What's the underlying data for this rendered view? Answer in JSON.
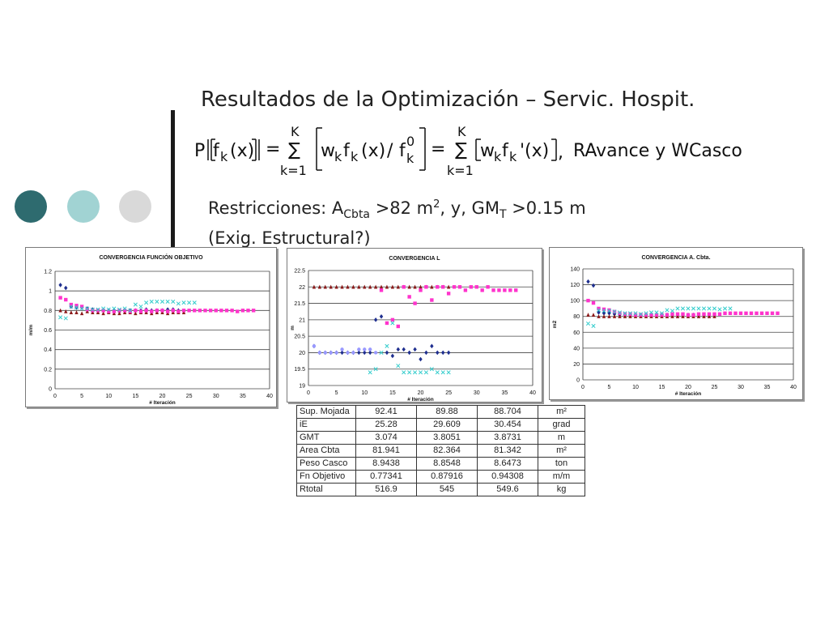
{
  "slide": {
    "title": "Resultados de la Optimización – Servic. Hospit.",
    "dot_colors": [
      "#2e6b6f",
      "#a1d3d3",
      "#d9d9d9"
    ],
    "formula": {
      "lhs_p": "P",
      "fk": "f",
      "k": "k",
      "x": "(x)",
      "eq": "=",
      "sum": "∑",
      "upper": "K",
      "lower": "k=1",
      "w": "w",
      "slash": "/",
      "zero": "0",
      "xprime": "'(x)",
      "comma": ",",
      "tail": "RAvance y WCasco"
    },
    "restricciones": {
      "line1_a": "Restricciones: A",
      "sub_cbta": "Cbta",
      "line1_b": " >82 m",
      "sup2": "2",
      "line1_c": ", y, GM",
      "sub_t": "T",
      "line1_d": " >0.15 m",
      "line2": "(Exig. Estructural?)"
    }
  },
  "colors": {
    "navy": "#1f2f8f",
    "maroon": "#8b1a1a",
    "magenta": "#ff33cc",
    "cyan": "#33cccc",
    "lavender": "#9999ff",
    "grid": "#444444"
  },
  "table": {
    "rows": [
      {
        "label": "Sup. Mojada",
        "v1": "92.41",
        "v2": "89.88",
        "v3": "88.704",
        "unit": "m²"
      },
      {
        "label": "iE",
        "v1": "25.28",
        "v2": "29.609",
        "v3": "30.454",
        "unit": "grad"
      },
      {
        "label": "GMT",
        "v1": "3.074",
        "v2": "3.8051",
        "v3": "3.8731",
        "unit": "m"
      },
      {
        "label": "Area Cbta",
        "v1": "81.941",
        "v2": "82.364",
        "v3": "81.342",
        "unit": "m²"
      },
      {
        "label": "Peso Casco",
        "v1": "8.9438",
        "v2": "8.8548",
        "v3": "8.6473",
        "unit": "ton"
      },
      {
        "label": "Fn Objetivo",
        "v1": "0.77341",
        "v2": "0.87916",
        "v3": "0.94308",
        "unit": "m/m"
      },
      {
        "label": "Rtotal",
        "v1": "516.9",
        "v2": "545",
        "v3": "549.6",
        "unit": "kg"
      }
    ]
  },
  "chart_data": [
    {
      "type": "scatter",
      "title": "CONVERGENCIA FUNCIÓN OBJETIVO",
      "xlabel": "# Iteración",
      "ylabel": "m/m",
      "xlim": [
        0,
        40
      ],
      "ylim": [
        0,
        1.2
      ],
      "xticks": [
        0,
        5,
        10,
        15,
        20,
        25,
        30,
        35,
        40
      ],
      "yticks": [
        0,
        0.2,
        0.4,
        0.6,
        0.8,
        1,
        1.2
      ],
      "ytick_labels": [
        "0",
        "0.2",
        "0.4",
        "0.6",
        "0.8",
        "1",
        "1.2"
      ],
      "grid": "horizontal",
      "series": [
        {
          "marker": "diamond",
          "color": "#1f2f8f",
          "x": [
            1,
            2,
            3,
            4,
            5,
            6,
            7,
            8,
            9,
            10,
            11,
            12,
            13,
            14,
            15,
            16,
            17,
            18,
            19,
            20,
            21,
            22,
            23
          ],
          "y": [
            1.06,
            1.03,
            0.84,
            0.83,
            0.83,
            0.82,
            0.81,
            0.8,
            0.8,
            0.8,
            0.8,
            0.79,
            0.8,
            0.8,
            0.8,
            0.8,
            0.81,
            0.8,
            0.8,
            0.8,
            0.81,
            0.81,
            0.8
          ]
        },
        {
          "marker": "triangle",
          "color": "#8b1a1a",
          "x": [
            1,
            2,
            3,
            4,
            5,
            6,
            7,
            8,
            9,
            10,
            11,
            12,
            13,
            14,
            15,
            16,
            17,
            18,
            19,
            20,
            21,
            22,
            23,
            24
          ],
          "y": [
            0.8,
            0.79,
            0.78,
            0.78,
            0.77,
            0.79,
            0.78,
            0.78,
            0.77,
            0.78,
            0.77,
            0.77,
            0.78,
            0.78,
            0.77,
            0.78,
            0.78,
            0.77,
            0.78,
            0.78,
            0.77,
            0.78,
            0.78,
            0.78
          ]
        },
        {
          "marker": "square",
          "color": "#ff33cc",
          "x": [
            1,
            2,
            3,
            4,
            5,
            6,
            7,
            8,
            9,
            10,
            11,
            12,
            13,
            14,
            15,
            16,
            17,
            18,
            19,
            20,
            21,
            22,
            23,
            24,
            25,
            26,
            27,
            28,
            29,
            30,
            31,
            32,
            33,
            34,
            35,
            36,
            37
          ],
          "y": [
            0.93,
            0.91,
            0.86,
            0.85,
            0.84,
            0.81,
            0.8,
            0.8,
            0.8,
            0.79,
            0.79,
            0.8,
            0.8,
            0.79,
            0.8,
            0.79,
            0.8,
            0.79,
            0.8,
            0.8,
            0.79,
            0.8,
            0.79,
            0.8,
            0.8,
            0.8,
            0.8,
            0.8,
            0.8,
            0.8,
            0.8,
            0.8,
            0.8,
            0.79,
            0.8,
            0.8,
            0.8
          ]
        },
        {
          "marker": "x",
          "color": "#33cccc",
          "x": [
            1,
            2,
            3,
            4,
            5,
            6,
            7,
            8,
            9,
            10,
            11,
            12,
            13,
            14,
            15,
            16,
            17,
            18,
            19,
            20,
            21,
            22,
            23,
            24,
            25,
            26
          ],
          "y": [
            0.73,
            0.72,
            0.84,
            0.83,
            0.82,
            0.82,
            0.81,
            0.81,
            0.82,
            0.81,
            0.82,
            0.81,
            0.82,
            0.8,
            0.86,
            0.84,
            0.88,
            0.89,
            0.89,
            0.89,
            0.89,
            0.89,
            0.87,
            0.88,
            0.88,
            0.88
          ]
        }
      ]
    },
    {
      "type": "scatter",
      "title": "CONVERGENCIA  L",
      "xlabel": "# Iteración",
      "ylabel": "m",
      "xlim": [
        0,
        40
      ],
      "ylim": [
        19,
        22.5
      ],
      "xticks": [
        0,
        5,
        10,
        15,
        20,
        25,
        30,
        35,
        40
      ],
      "yticks": [
        19,
        19.5,
        20,
        20.5,
        21,
        21.5,
        22,
        22.5
      ],
      "ytick_labels": [
        "19",
        "19.5",
        "20",
        "20.5",
        "21",
        "21.5",
        "22",
        "22.5"
      ],
      "grid": "horizontal",
      "series": [
        {
          "marker": "diamond",
          "color": "#1f2f8f",
          "x": [
            1,
            2,
            3,
            4,
            5,
            6,
            7,
            8,
            9,
            10,
            11,
            12,
            13,
            14,
            15,
            16,
            17,
            18,
            19,
            20,
            21,
            22,
            23,
            24,
            25
          ],
          "y": [
            20.2,
            20.0,
            20.0,
            20.0,
            20.0,
            20.0,
            20.0,
            20.0,
            20.0,
            20.0,
            20.0,
            21.0,
            21.1,
            20.0,
            19.9,
            20.1,
            20.1,
            20.0,
            20.1,
            19.8,
            20.0,
            20.2,
            20.0,
            20.0,
            20.0
          ]
        },
        {
          "marker": "triangle",
          "color": "#8b1a1a",
          "x": [
            1,
            2,
            3,
            4,
            5,
            6,
            7,
            8,
            9,
            10,
            11,
            12,
            13,
            14,
            15,
            16,
            17,
            18,
            19,
            20,
            21,
            22,
            23,
            24,
            25
          ],
          "y": [
            22.0,
            22.0,
            22.0,
            22.0,
            22.0,
            22.0,
            22.0,
            22.0,
            22.0,
            22.0,
            22.0,
            22.0,
            22.0,
            22.0,
            22.0,
            22.0,
            22.0,
            22.0,
            22.0,
            22.0,
            22.0,
            22.0,
            22.0,
            22.0,
            22.0
          ]
        },
        {
          "marker": "square",
          "color": "#ff33cc",
          "x": [
            17,
            18,
            19,
            20,
            21,
            22,
            23,
            24,
            25,
            26,
            27,
            28,
            29,
            30,
            31,
            32,
            33,
            34,
            35,
            36,
            37,
            13,
            14,
            15,
            16
          ],
          "y": [
            22.0,
            21.7,
            21.5,
            21.9,
            22.0,
            21.6,
            22.0,
            22.0,
            21.8,
            22.0,
            22.0,
            21.9,
            22.0,
            22.0,
            21.9,
            22.0,
            21.9,
            21.9,
            21.9,
            21.9,
            21.9,
            21.9,
            20.9,
            21.0,
            20.8
          ]
        },
        {
          "marker": "x",
          "color": "#33cccc",
          "x": [
            11,
            12,
            13,
            14,
            15,
            16,
            17,
            18,
            19,
            20,
            21,
            22,
            23,
            24,
            25
          ],
          "y": [
            19.4,
            19.5,
            20.0,
            20.2,
            20.9,
            19.6,
            19.4,
            19.4,
            19.4,
            19.4,
            19.4,
            19.5,
            19.4,
            19.4,
            19.4
          ]
        },
        {
          "marker": "circle",
          "color": "#9999ff",
          "x": [
            1,
            2,
            3,
            4,
            5,
            6,
            7,
            8,
            9,
            10,
            11,
            12
          ],
          "y": [
            20.2,
            20.0,
            20.0,
            20.0,
            20.0,
            20.1,
            20.0,
            20.0,
            20.1,
            20.1,
            20.1,
            20.0
          ]
        }
      ]
    },
    {
      "type": "scatter",
      "title": "CONVERGENCIA  A. Cbta.",
      "xlabel": "# Iteración",
      "ylabel": "m2",
      "xlim": [
        0,
        40
      ],
      "ylim": [
        0,
        140
      ],
      "xticks": [
        0,
        5,
        10,
        15,
        20,
        25,
        30,
        35,
        40
      ],
      "yticks": [
        0,
        20,
        40,
        60,
        80,
        100,
        120,
        140
      ],
      "ytick_labels": [
        "0",
        "20",
        "40",
        "60",
        "80",
        "100",
        "120",
        "140"
      ],
      "grid": "horizontal",
      "series": [
        {
          "marker": "diamond",
          "color": "#1f2f8f",
          "x": [
            1,
            2,
            3,
            4,
            5,
            6,
            7,
            8,
            9,
            10,
            11,
            12,
            13,
            14,
            15,
            16,
            17,
            18,
            19,
            20,
            21,
            22,
            23,
            24,
            25
          ],
          "y": [
            124,
            119,
            85,
            84,
            84,
            83,
            82,
            82,
            82,
            82,
            82,
            82,
            82,
            82,
            82,
            82,
            82,
            82,
            82,
            82,
            82,
            82,
            82,
            82,
            82
          ]
        },
        {
          "marker": "triangle",
          "color": "#8b1a1a",
          "x": [
            1,
            2,
            3,
            4,
            5,
            6,
            7,
            8,
            9,
            10,
            11,
            12,
            13,
            14,
            15,
            16,
            17,
            18,
            19,
            20,
            21,
            22,
            23,
            24,
            25
          ],
          "y": [
            82,
            82,
            80,
            80,
            80,
            80,
            80,
            80,
            80,
            80,
            80,
            80,
            80,
            80,
            80,
            80,
            80,
            80,
            80,
            80,
            80,
            80,
            80,
            80,
            80
          ]
        },
        {
          "marker": "square",
          "color": "#ff33cc",
          "x": [
            1,
            2,
            3,
            4,
            5,
            6,
            7,
            8,
            9,
            10,
            11,
            12,
            13,
            14,
            15,
            16,
            17,
            18,
            19,
            20,
            21,
            22,
            23,
            24,
            25,
            26,
            27,
            28,
            29,
            30,
            31,
            32,
            33,
            34,
            35,
            36,
            37
          ],
          "y": [
            100,
            97,
            90,
            89,
            88,
            86,
            84,
            83,
            83,
            82,
            82,
            82,
            82,
            82,
            82,
            82,
            83,
            83,
            83,
            82,
            82,
            83,
            83,
            83,
            83,
            83,
            84,
            84,
            84,
            84,
            84,
            84,
            84,
            84,
            84,
            84,
            84
          ]
        },
        {
          "marker": "x",
          "color": "#33cccc",
          "x": [
            1,
            2,
            3,
            4,
            5,
            6,
            7,
            8,
            9,
            10,
            11,
            12,
            13,
            14,
            15,
            16,
            17,
            18,
            19,
            20,
            21,
            22,
            23,
            24,
            25,
            26,
            27,
            28
          ],
          "y": [
            71,
            68,
            88,
            87,
            87,
            86,
            85,
            84,
            84,
            84,
            83,
            84,
            85,
            85,
            84,
            88,
            87,
            90,
            90,
            90,
            90,
            90,
            90,
            90,
            90,
            89,
            90,
            90
          ]
        }
      ]
    }
  ]
}
